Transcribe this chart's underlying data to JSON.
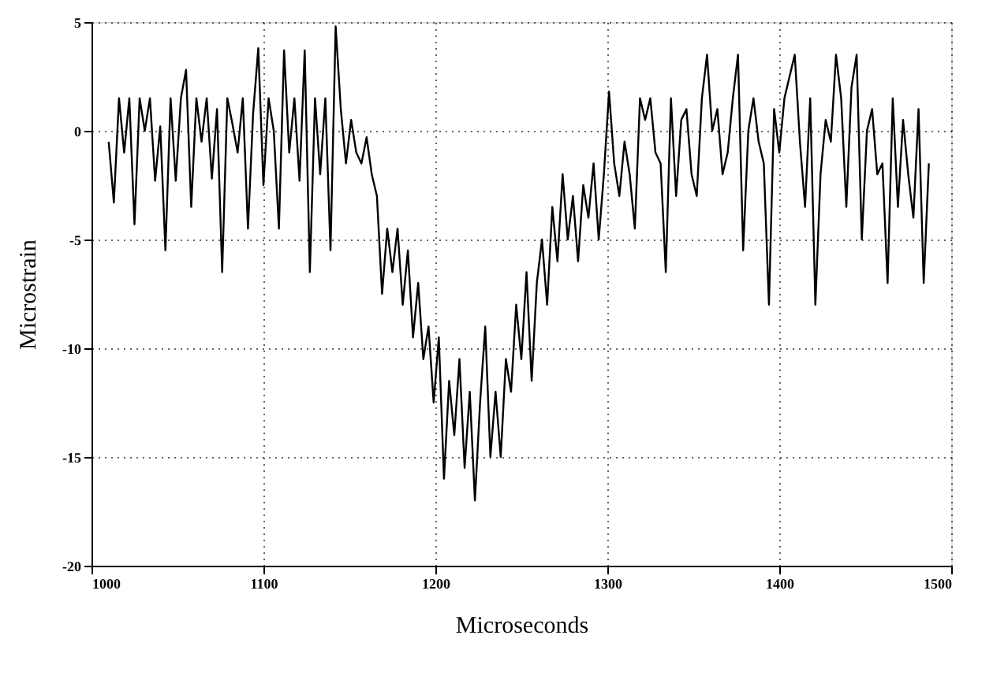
{
  "chart_data": {
    "type": "line",
    "xlabel": "Microseconds",
    "ylabel": "Microstrain",
    "xlim": [
      1000,
      1500
    ],
    "xticks": [
      1000,
      1100,
      1200,
      1300,
      1400,
      1500
    ],
    "ylim": [
      -20,
      5
    ],
    "yticks": [
      -20,
      -15,
      -10,
      -5,
      0,
      5
    ],
    "grid": true,
    "marker": "none",
    "line_style": "solid",
    "x": [
      1010,
      1013,
      1016,
      1019,
      1022,
      1025,
      1028,
      1031,
      1034,
      1037,
      1040,
      1043,
      1046,
      1049,
      1052,
      1055,
      1058,
      1061,
      1064,
      1067,
      1070,
      1073,
      1076,
      1079,
      1082,
      1085,
      1088,
      1091,
      1094,
      1097,
      1100,
      1103,
      1106,
      1109,
      1112,
      1115,
      1118,
      1121,
      1124,
      1127,
      1130,
      1133,
      1136,
      1139,
      1142,
      1145,
      1148,
      1151,
      1154,
      1157,
      1160,
      1163,
      1166,
      1169,
      1172,
      1175,
      1178,
      1181,
      1184,
      1187,
      1190,
      1193,
      1196,
      1199,
      1202,
      1205,
      1208,
      1211,
      1214,
      1217,
      1220,
      1223,
      1226,
      1229,
      1232,
      1235,
      1238,
      1241,
      1244,
      1247,
      1250,
      1253,
      1256,
      1259,
      1262,
      1265,
      1268,
      1271,
      1274,
      1277,
      1280,
      1283,
      1286,
      1289,
      1292,
      1295,
      1298,
      1301,
      1304,
      1307,
      1310,
      1313,
      1316,
      1319,
      1322,
      1325,
      1328,
      1331,
      1334,
      1337,
      1340,
      1343,
      1346,
      1349,
      1352,
      1355,
      1358,
      1361,
      1364,
      1367,
      1370,
      1373,
      1376,
      1379,
      1382,
      1385,
      1388,
      1391,
      1394,
      1397,
      1400,
      1403,
      1406,
      1409,
      1412,
      1415,
      1418,
      1421,
      1424,
      1427,
      1430,
      1433,
      1436,
      1439,
      1442,
      1445,
      1448,
      1451,
      1454,
      1457,
      1460,
      1463,
      1466,
      1469,
      1472,
      1475,
      1478,
      1481,
      1484,
      1487
    ],
    "series": [
      {
        "color": "#000000",
        "values": [
          -0.5,
          -3.3,
          1.5,
          -1.0,
          1.5,
          -4.3,
          1.5,
          0.0,
          1.5,
          -2.3,
          0.2,
          -5.5,
          1.5,
          -2.3,
          1.5,
          2.8,
          -3.5,
          1.5,
          -0.5,
          1.5,
          -2.2,
          1.0,
          -6.5,
          1.5,
          0.3,
          -1.0,
          1.5,
          -4.5,
          0.8,
          3.8,
          -2.5,
          1.5,
          0.0,
          -4.5,
          3.7,
          -1.0,
          1.5,
          -2.3,
          3.7,
          -6.5,
          1.5,
          -2.0,
          1.5,
          -5.5,
          4.8,
          1.0,
          -1.5,
          0.5,
          -1.0,
          -1.5,
          -0.3,
          -2.0,
          -3.0,
          -7.5,
          -4.5,
          -6.5,
          -4.5,
          -8.0,
          -5.5,
          -9.5,
          -7.0,
          -10.5,
          -9.0,
          -12.5,
          -9.5,
          -16.0,
          -11.5,
          -14.0,
          -10.5,
          -15.5,
          -12.0,
          -17.0,
          -12.5,
          -9.0,
          -15.0,
          -12.0,
          -15.0,
          -10.5,
          -12.0,
          -8.0,
          -10.5,
          -6.5,
          -11.5,
          -7.0,
          -5.0,
          -8.0,
          -3.5,
          -6.0,
          -2.0,
          -5.0,
          -3.0,
          -6.0,
          -2.5,
          -4.0,
          -1.5,
          -5.0,
          -2.0,
          1.8,
          -1.5,
          -3.0,
          -0.5,
          -2.0,
          -4.5,
          1.5,
          0.5,
          1.5,
          -1.0,
          -1.5,
          -6.5,
          1.5,
          -3.0,
          0.5,
          1.0,
          -2.0,
          -3.0,
          1.5,
          3.5,
          0.0,
          1.0,
          -2.0,
          -1.0,
          1.5,
          3.5,
          -5.5,
          0.0,
          1.5,
          -0.5,
          -1.5,
          -8.0,
          1.0,
          -1.0,
          1.5,
          2.5,
          3.5,
          -0.5,
          -3.5,
          1.5,
          -8.0,
          -2.0,
          0.5,
          -0.5,
          3.5,
          1.5,
          -3.5,
          2.0,
          3.5,
          -5.0,
          0.0,
          1.0,
          -2.0,
          -1.5,
          -7.0,
          1.5,
          -3.5,
          0.5,
          -2.0,
          -4.0,
          1.0,
          -7.0,
          -1.5
        ]
      }
    ]
  }
}
